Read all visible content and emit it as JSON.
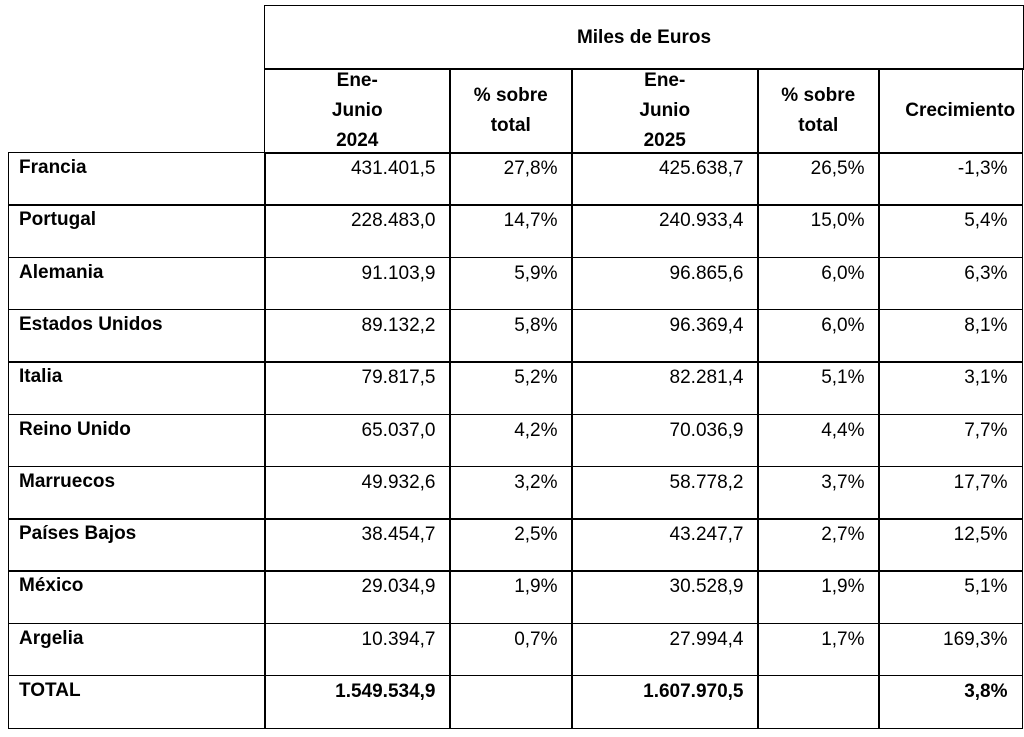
{
  "table": {
    "group_header": "Miles de Euros",
    "columns": [
      "Ene-Junio 2024",
      "% sobre total",
      "Ene-Junio 2025",
      "% sobre total",
      "Crecimiento"
    ],
    "rows": [
      {
        "label": "Francia",
        "cells": [
          "431.401,5",
          "27,8%",
          "425.638,7",
          "26,5%",
          "-1,3%"
        ]
      },
      {
        "label": "Portugal",
        "cells": [
          "228.483,0",
          "14,7%",
          "240.933,4",
          "15,0%",
          "5,4%"
        ]
      },
      {
        "label": "Alemania",
        "cells": [
          "91.103,9",
          "5,9%",
          "96.865,6",
          "6,0%",
          "6,3%"
        ]
      },
      {
        "label": "Estados Unidos",
        "cells": [
          "89.132,2",
          "5,8%",
          "96.369,4",
          "6,0%",
          "8,1%"
        ]
      },
      {
        "label": "Italia",
        "cells": [
          "79.817,5",
          "5,2%",
          "82.281,4",
          "5,1%",
          "3,1%"
        ]
      },
      {
        "label": "Reino Unido",
        "cells": [
          "65.037,0",
          "4,2%",
          "70.036,9",
          "4,4%",
          "7,7%"
        ]
      },
      {
        "label": "Marruecos",
        "cells": [
          "49.932,6",
          "3,2%",
          "58.778,2",
          "3,7%",
          "17,7%"
        ]
      },
      {
        "label": "Países Bajos",
        "cells": [
          "38.454,7",
          "2,5%",
          "43.247,7",
          "2,7%",
          "12,5%"
        ]
      },
      {
        "label": "México",
        "cells": [
          "29.034,9",
          "1,9%",
          "30.528,9",
          "1,9%",
          "5,1%"
        ]
      },
      {
        "label": "Argelia",
        "cells": [
          "10.394,7",
          "0,7%",
          "27.994,4",
          "1,7%",
          "169,3%"
        ]
      },
      {
        "label": "TOTAL",
        "cells": [
          "1.549.534,9",
          null,
          "1.607.970,5",
          null,
          "3,8%"
        ]
      }
    ]
  }
}
